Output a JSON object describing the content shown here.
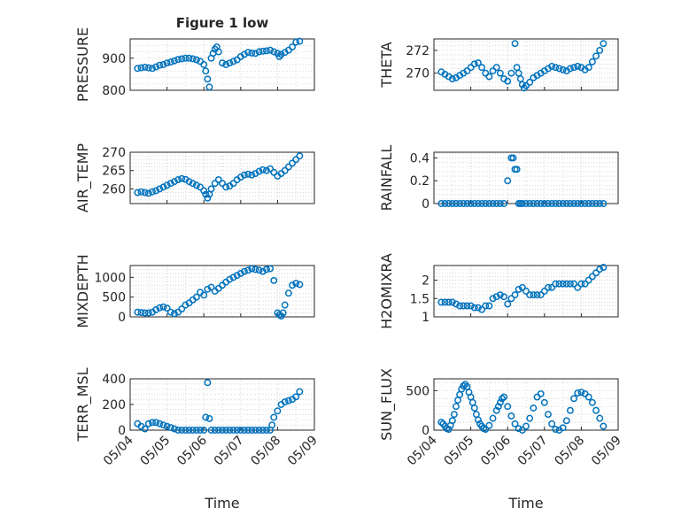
{
  "figure": {
    "title": "Figure 1 low",
    "xlabel": "Time",
    "xticks": [
      "05/04",
      "05/05",
      "05/06",
      "05/07",
      "05/08",
      "05/09"
    ],
    "marker_color": "#0072BD"
  },
  "chart_data": [
    {
      "type": "scatter",
      "title": "Figure 1 low",
      "ylabel": "PRESSURE",
      "ylim": [
        800,
        960
      ],
      "yticks": [
        800,
        900
      ],
      "xlim": [
        0,
        5
      ],
      "x": [
        0.2,
        0.3,
        0.4,
        0.5,
        0.6,
        0.7,
        0.8,
        0.9,
        1.0,
        1.1,
        1.2,
        1.3,
        1.4,
        1.5,
        1.6,
        1.7,
        1.8,
        1.9,
        2.0,
        2.05,
        2.1,
        2.15,
        2.2,
        2.25,
        2.3,
        2.35,
        2.4,
        2.5,
        2.6,
        2.7,
        2.8,
        2.9,
        3.0,
        3.1,
        3.2,
        3.3,
        3.4,
        3.5,
        3.6,
        3.7,
        3.8,
        3.9,
        4.0,
        4.05,
        4.1,
        4.2,
        4.3,
        4.4,
        4.5,
        4.6
      ],
      "y": [
        868,
        870,
        872,
        870,
        868,
        873,
        878,
        880,
        885,
        888,
        892,
        896,
        898,
        900,
        900,
        898,
        895,
        890,
        880,
        860,
        835,
        810,
        900,
        915,
        928,
        935,
        920,
        885,
        880,
        885,
        890,
        895,
        905,
        912,
        918,
        916,
        915,
        920,
        922,
        923,
        925,
        920,
        915,
        905,
        912,
        918,
        925,
        935,
        950,
        953
      ]
    },
    {
      "type": "scatter",
      "ylabel": "THETA",
      "ylim": [
        268.5,
        273
      ],
      "yticks": [
        270,
        272
      ],
      "xlim": [
        0,
        5
      ],
      "x": [
        0.2,
        0.3,
        0.4,
        0.5,
        0.6,
        0.7,
        0.8,
        0.9,
        1.0,
        1.1,
        1.2,
        1.3,
        1.4,
        1.5,
        1.6,
        1.7,
        1.8,
        1.9,
        2.0,
        2.1,
        2.2,
        2.25,
        2.3,
        2.35,
        2.4,
        2.45,
        2.5,
        2.6,
        2.7,
        2.8,
        2.9,
        3.0,
        3.1,
        3.2,
        3.3,
        3.4,
        3.5,
        3.6,
        3.7,
        3.8,
        3.9,
        4.0,
        4.1,
        4.2,
        4.3,
        4.4,
        4.5,
        4.6
      ],
      "y": [
        270.1,
        269.9,
        269.7,
        269.5,
        269.6,
        269.8,
        270.0,
        270.2,
        270.5,
        270.8,
        270.9,
        270.5,
        270.0,
        269.7,
        270.2,
        270.5,
        270.0,
        269.5,
        269.3,
        270.0,
        272.6,
        270.5,
        270.0,
        269.5,
        269.0,
        268.7,
        268.9,
        269.2,
        269.6,
        269.8,
        270.0,
        270.2,
        270.4,
        270.6,
        270.5,
        270.4,
        270.3,
        270.2,
        270.4,
        270.5,
        270.6,
        270.5,
        270.3,
        270.5,
        271.0,
        271.5,
        272.0,
        272.6
      ]
    },
    {
      "type": "scatter",
      "ylabel": "AIR_TEMP",
      "ylim": [
        256,
        270
      ],
      "yticks": [
        260,
        265,
        270
      ],
      "xlim": [
        0,
        5
      ],
      "x": [
        0.2,
        0.3,
        0.4,
        0.5,
        0.6,
        0.7,
        0.8,
        0.9,
        1.0,
        1.1,
        1.2,
        1.3,
        1.4,
        1.5,
        1.6,
        1.7,
        1.8,
        1.9,
        2.0,
        2.05,
        2.1,
        2.15,
        2.2,
        2.3,
        2.4,
        2.5,
        2.6,
        2.7,
        2.8,
        2.9,
        3.0,
        3.1,
        3.2,
        3.3,
        3.4,
        3.5,
        3.6,
        3.7,
        3.8,
        3.9,
        4.0,
        4.1,
        4.2,
        4.3,
        4.4,
        4.5,
        4.6
      ],
      "y": [
        259.0,
        259.2,
        259.0,
        258.8,
        259.2,
        259.5,
        260.0,
        260.5,
        261.0,
        261.5,
        262.0,
        262.5,
        262.8,
        262.6,
        262.0,
        261.5,
        261.0,
        260.5,
        259.5,
        258.5,
        257.5,
        258.5,
        260.0,
        261.5,
        262.5,
        261.5,
        260.5,
        260.8,
        261.5,
        262.5,
        263.2,
        263.8,
        264.0,
        263.8,
        264.2,
        264.8,
        265.2,
        265.0,
        265.5,
        264.5,
        263.5,
        264.2,
        265.0,
        266.0,
        267.0,
        268.0,
        269.0
      ]
    },
    {
      "type": "scatter",
      "ylabel": "RAINFALL",
      "ylim": [
        0,
        0.45
      ],
      "yticks": [
        0,
        0.2,
        0.4
      ],
      "xlim": [
        0,
        5
      ],
      "x": [
        0.2,
        0.3,
        0.4,
        0.5,
        0.6,
        0.7,
        0.8,
        0.9,
        1.0,
        1.1,
        1.2,
        1.3,
        1.4,
        1.5,
        1.6,
        1.7,
        1.8,
        1.9,
        2.0,
        2.1,
        2.15,
        2.2,
        2.25,
        2.3,
        2.35,
        2.4,
        2.5,
        2.6,
        2.7,
        2.8,
        2.9,
        3.0,
        3.1,
        3.2,
        3.3,
        3.4,
        3.5,
        3.6,
        3.7,
        3.8,
        3.9,
        4.0,
        4.1,
        4.2,
        4.3,
        4.4,
        4.5,
        4.6
      ],
      "y": [
        0,
        0,
        0,
        0,
        0,
        0,
        0,
        0,
        0,
        0,
        0,
        0,
        0,
        0,
        0,
        0,
        0,
        0,
        0.2,
        0.4,
        0.4,
        0.3,
        0.3,
        0,
        0,
        0,
        0,
        0,
        0,
        0,
        0,
        0,
        0,
        0,
        0,
        0,
        0,
        0,
        0,
        0,
        0,
        0,
        0,
        0,
        0,
        0,
        0,
        0
      ]
    },
    {
      "type": "scatter",
      "ylabel": "MIXDEPTH",
      "ylim": [
        0,
        1300
      ],
      "yticks": [
        0,
        500,
        1000
      ],
      "xlim": [
        0,
        5
      ],
      "x": [
        0.2,
        0.3,
        0.4,
        0.5,
        0.6,
        0.7,
        0.8,
        0.9,
        1.0,
        1.1,
        1.2,
        1.3,
        1.4,
        1.5,
        1.6,
        1.7,
        1.8,
        1.9,
        2.0,
        2.1,
        2.2,
        2.3,
        2.4,
        2.5,
        2.6,
        2.7,
        2.8,
        2.9,
        3.0,
        3.1,
        3.2,
        3.3,
        3.4,
        3.5,
        3.6,
        3.7,
        3.8,
        3.9,
        4.0,
        4.05,
        4.1,
        4.15,
        4.2,
        4.3,
        4.4,
        4.5,
        4.6
      ],
      "y": [
        120,
        110,
        100,
        100,
        120,
        180,
        230,
        250,
        220,
        120,
        80,
        120,
        200,
        300,
        350,
        430,
        500,
        620,
        550,
        700,
        750,
        650,
        720,
        800,
        880,
        950,
        1000,
        1050,
        1100,
        1150,
        1180,
        1220,
        1200,
        1180,
        1150,
        1200,
        1220,
        920,
        100,
        50,
        20,
        100,
        300,
        600,
        800,
        850,
        820
      ]
    },
    {
      "type": "scatter",
      "ylabel": "H2OMIXRA",
      "ylim": [
        1,
        2.4
      ],
      "yticks": [
        1,
        1.5,
        2
      ],
      "xlim": [
        0,
        5
      ],
      "x": [
        0.2,
        0.3,
        0.4,
        0.5,
        0.6,
        0.7,
        0.8,
        0.9,
        1.0,
        1.1,
        1.2,
        1.3,
        1.4,
        1.5,
        1.6,
        1.7,
        1.8,
        1.9,
        2.0,
        2.1,
        2.2,
        2.3,
        2.4,
        2.5,
        2.6,
        2.7,
        2.8,
        2.9,
        3.0,
        3.1,
        3.2,
        3.3,
        3.4,
        3.5,
        3.6,
        3.7,
        3.8,
        3.9,
        4.0,
        4.1,
        4.2,
        4.3,
        4.4,
        4.5,
        4.6
      ],
      "y": [
        1.4,
        1.4,
        1.4,
        1.4,
        1.35,
        1.3,
        1.3,
        1.3,
        1.3,
        1.25,
        1.25,
        1.2,
        1.3,
        1.3,
        1.5,
        1.55,
        1.6,
        1.55,
        1.35,
        1.5,
        1.6,
        1.75,
        1.8,
        1.7,
        1.6,
        1.6,
        1.6,
        1.6,
        1.7,
        1.8,
        1.8,
        1.9,
        1.9,
        1.9,
        1.9,
        1.9,
        1.9,
        1.8,
        1.9,
        1.9,
        2.0,
        2.1,
        2.2,
        2.3,
        2.35
      ]
    },
    {
      "type": "scatter",
      "ylabel": "TERR_MSL",
      "ylim": [
        0,
        400
      ],
      "yticks": [
        0,
        200,
        400
      ],
      "xlim": [
        0,
        5
      ],
      "x": [
        0.2,
        0.3,
        0.4,
        0.5,
        0.6,
        0.7,
        0.8,
        0.9,
        1.0,
        1.1,
        1.2,
        1.3,
        1.4,
        1.5,
        1.6,
        1.7,
        1.8,
        1.9,
        2.0,
        2.05,
        2.1,
        2.15,
        2.2,
        2.3,
        2.4,
        2.5,
        2.6,
        2.7,
        2.8,
        2.9,
        3.0,
        3.1,
        3.2,
        3.3,
        3.4,
        3.5,
        3.6,
        3.7,
        3.8,
        3.85,
        3.9,
        4.0,
        4.1,
        4.2,
        4.3,
        4.4,
        4.5,
        4.6
      ],
      "y": [
        50,
        30,
        10,
        50,
        60,
        60,
        50,
        40,
        30,
        20,
        10,
        0,
        0,
        0,
        0,
        0,
        0,
        0,
        0,
        100,
        370,
        90,
        0,
        0,
        0,
        0,
        0,
        0,
        0,
        0,
        0,
        0,
        0,
        0,
        0,
        0,
        0,
        0,
        0,
        40,
        100,
        150,
        200,
        220,
        230,
        240,
        260,
        300
      ]
    },
    {
      "type": "scatter",
      "ylabel": "SUN_FLUX",
      "ylim": [
        0,
        650
      ],
      "yticks": [
        0,
        500
      ],
      "xlim": [
        0,
        5
      ],
      "x": [
        0.2,
        0.25,
        0.3,
        0.35,
        0.4,
        0.45,
        0.5,
        0.55,
        0.6,
        0.65,
        0.7,
        0.75,
        0.8,
        0.85,
        0.9,
        0.95,
        1.0,
        1.05,
        1.1,
        1.15,
        1.2,
        1.25,
        1.3,
        1.35,
        1.4,
        1.5,
        1.6,
        1.7,
        1.75,
        1.8,
        1.85,
        1.9,
        2.0,
        2.1,
        2.2,
        2.3,
        2.4,
        2.5,
        2.6,
        2.7,
        2.8,
        2.9,
        3.0,
        3.1,
        3.2,
        3.3,
        3.4,
        3.5,
        3.6,
        3.7,
        3.8,
        3.9,
        4.0,
        4.1,
        4.2,
        4.3,
        4.4,
        4.5,
        4.6
      ],
      "y": [
        100,
        80,
        50,
        20,
        10,
        60,
        120,
        200,
        300,
        380,
        450,
        520,
        560,
        580,
        550,
        480,
        420,
        350,
        280,
        200,
        130,
        80,
        50,
        20,
        10,
        60,
        150,
        250,
        300,
        350,
        400,
        420,
        300,
        180,
        80,
        20,
        0,
        50,
        150,
        280,
        420,
        460,
        350,
        200,
        80,
        10,
        0,
        30,
        120,
        250,
        400,
        470,
        480,
        460,
        420,
        350,
        250,
        150,
        50
      ]
    }
  ]
}
